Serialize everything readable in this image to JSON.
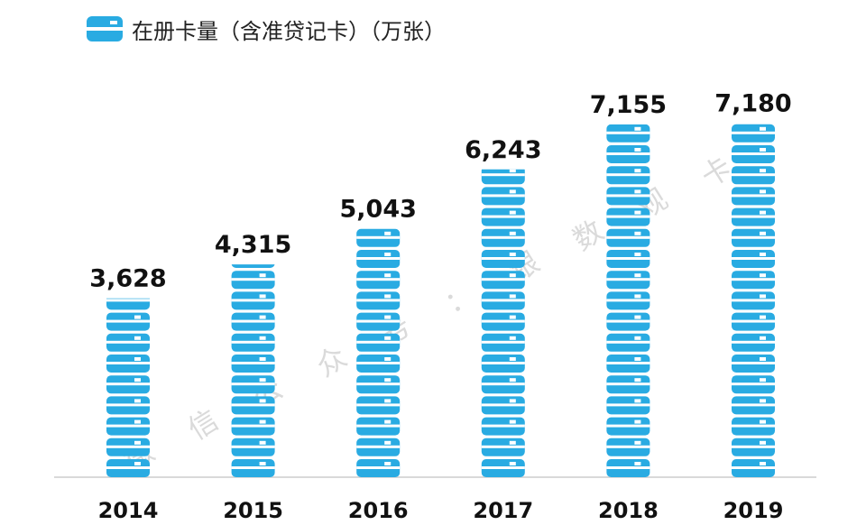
{
  "chart_data": {
    "type": "bar",
    "legend": "在册卡量（含准贷记卡）（万张）",
    "categories": [
      "2014",
      "2015",
      "2016",
      "2017",
      "2018",
      "2019"
    ],
    "values": [
      3628,
      4315,
      5043,
      6243,
      7155,
      7180
    ],
    "value_labels": [
      "3,628",
      "4,315",
      "5,043",
      "6,243",
      "7,155",
      "7,180"
    ],
    "ylim": [
      0,
      7300
    ],
    "legend_position": "top-left",
    "grid": false,
    "bar_style": "stacked-card-icons"
  },
  "colors": {
    "bar": "#29ABE2",
    "card_chip": "#ffffff",
    "baseline": "#d9d9d9",
    "text": "#111111"
  },
  "watermark": [
    "微",
    "信",
    "公",
    "众",
    "号",
    "：",
    "银",
    "数",
    "观",
    "卡"
  ],
  "icon": "credit-card-icon"
}
